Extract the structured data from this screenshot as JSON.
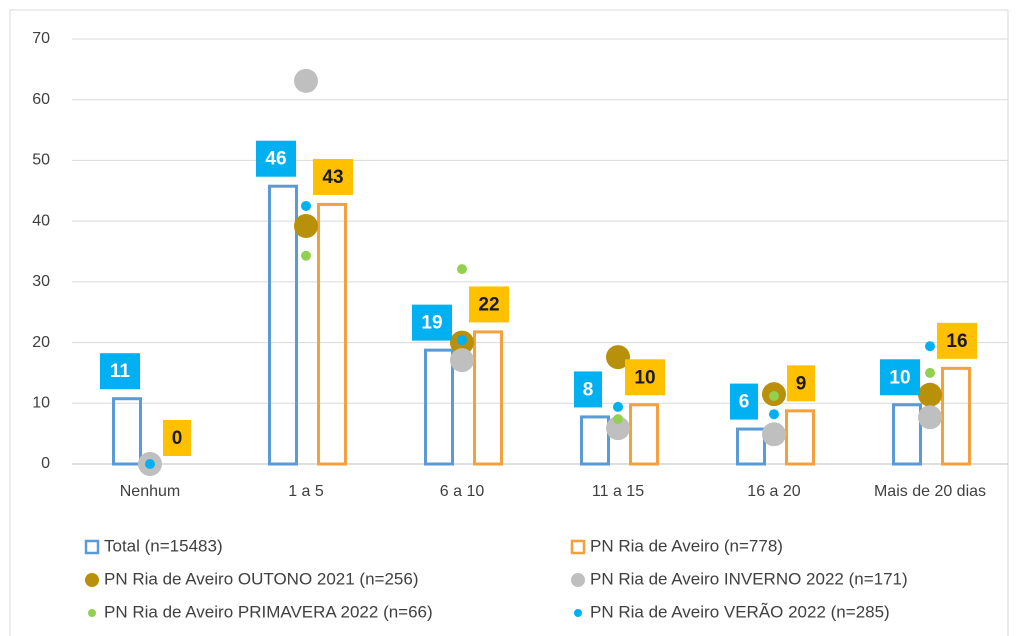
{
  "chart_data": {
    "type": "bar",
    "categories": [
      "Nenhum",
      "1 a 5",
      "6 a 10",
      "11 a 15",
      "16 a 20",
      "Mais de 20 dias"
    ],
    "ylim": [
      0,
      70
    ],
    "yticks": [
      0,
      10,
      20,
      30,
      40,
      50,
      60,
      70
    ],
    "grid": true,
    "legend": "bottom",
    "series": [
      {
        "name": "Total (n=15483)",
        "type": "bar",
        "color": "#5b9bd5",
        "label_fill": "#00b0f0",
        "label_color": "#ffffff",
        "values": [
          11,
          46,
          19,
          8,
          6,
          10
        ]
      },
      {
        "name": "PN Ria de Aveiro (n=778)",
        "type": "bar",
        "color": "#f4a03c",
        "label_fill": "#ffc000",
        "label_color": "#1a1a1a",
        "values": [
          0,
          43,
          22,
          10,
          9,
          16
        ]
      },
      {
        "name": "PN Ria de Aveiro OUTONO 2021 (n=256)",
        "type": "scatter",
        "color": "#b8900a",
        "size": "large",
        "values": [
          null,
          39.2,
          20,
          17.6,
          11.5,
          11.4
        ]
      },
      {
        "name": "PN Ria de Aveiro INVERNO 2022 (n=171)",
        "type": "scatter",
        "color": "#bfbfbf",
        "size": "large",
        "values": [
          0,
          63.1,
          17.1,
          5.9,
          4.9,
          7.7
        ]
      },
      {
        "name": "PN Ria de Aveiro PRIMAVERA 2022 (n=66)",
        "type": "scatter",
        "color": "#92d050",
        "size": "small",
        "values": [
          null,
          34.3,
          32.1,
          7.4,
          11.2,
          15
        ]
      },
      {
        "name": "PN Ria de Aveiro VERÃO 2022 (n=285)",
        "type": "scatter",
        "color": "#00b0f0",
        "size": "small",
        "values": [
          0,
          42.5,
          20.4,
          9.4,
          8.2,
          19.4
        ]
      }
    ]
  }
}
